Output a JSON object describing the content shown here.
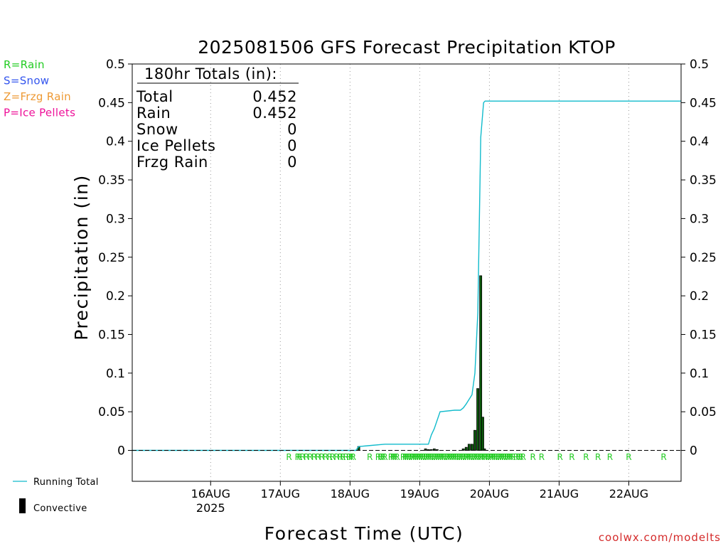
{
  "colors": {
    "rain": "#22cc22",
    "snow": "#3355ee",
    "frzg_rain": "#ee9933",
    "ice_pellets": "#ee1199",
    "running_total": "#11bbcc",
    "convective": "#000000",
    "bar_fill": "#0b5a0b",
    "credit": "#d42a2a"
  },
  "ptype_key": [
    {
      "text": "R=Rain",
      "color": "#22cc22"
    },
    {
      "text": "S=Snow",
      "color": "#3355ee"
    },
    {
      "text": "Z=Frzg Rain",
      "color": "#ee9933"
    },
    {
      "text": "P=Ice Pellets",
      "color": "#ee1199"
    }
  ],
  "totals_box": {
    "heading": "180hr Totals (in):",
    "rows": [
      {
        "label": "Total",
        "value": "0.452"
      },
      {
        "label": "Rain",
        "value": "0.452"
      },
      {
        "label": "Snow",
        "value": "0"
      },
      {
        "label": "Ice Pellets",
        "value": "0"
      },
      {
        "label": "Frzg Rain",
        "value": "0"
      }
    ]
  },
  "legend": {
    "running_total": "Running Total",
    "convective": "Convective"
  },
  "credit": "coolwx.com/modelts",
  "chart_data": {
    "type": "bar",
    "title": "2025081506 GFS Forecast Precipitation KTOP",
    "xlabel": "Forecast Time (UTC)",
    "ylabel": "Precipitation (in)",
    "x_unit": "forecast hour",
    "xlim": [
      -9,
      180
    ],
    "ylim": [
      -0.04,
      0.5
    ],
    "y_ticks": [
      0,
      0.05,
      0.1,
      0.15,
      0.2,
      0.25,
      0.3,
      0.35,
      0.4,
      0.45,
      0.5
    ],
    "y_tick_labels": [
      "0",
      "0.05",
      "0.1",
      "0.15",
      "0.2",
      "0.25",
      "0.3",
      "0.35",
      "0.4",
      "0.45",
      "0.5"
    ],
    "x_ticks": [
      {
        "hour": 18,
        "label": "16AUG",
        "sublabel": "2025"
      },
      {
        "hour": 42,
        "label": "17AUG",
        "sublabel": ""
      },
      {
        "hour": 66,
        "label": "18AUG",
        "sublabel": ""
      },
      {
        "hour": 90,
        "label": "19AUG",
        "sublabel": ""
      },
      {
        "hour": 114,
        "label": "20AUG",
        "sublabel": ""
      },
      {
        "hour": 138,
        "label": "21AUG",
        "sublabel": ""
      },
      {
        "hour": 162,
        "label": "22AUG",
        "sublabel": ""
      }
    ],
    "grid": "vertical dotted at day boundaries",
    "series": [
      {
        "name": "Convective",
        "kind": "bars",
        "x": [
          69,
          92,
          93,
          94,
          95,
          96,
          105,
          106,
          107,
          108,
          109,
          110,
          111,
          111.7,
          112.3
        ],
        "values": [
          0.005,
          0.002,
          0.001,
          0.001,
          0.002,
          0.001,
          0.002,
          0.004,
          0.008,
          0.008,
          0.026,
          0.08,
          0.226,
          0.043,
          0.002
        ]
      },
      {
        "name": "Running Total",
        "kind": "line",
        "x": [
          -9,
          68,
          69,
          72,
          78,
          90,
          93,
          94,
          95,
          97,
          102,
          103,
          104,
          105,
          106,
          107,
          108,
          109,
          110,
          111,
          112,
          112.5,
          180
        ],
        "values": [
          0,
          0,
          0.005,
          0.006,
          0.008,
          0.008,
          0.008,
          0.02,
          0.028,
          0.05,
          0.052,
          0.052,
          0.052,
          0.055,
          0.06,
          0.066,
          0.072,
          0.1,
          0.178,
          0.405,
          0.45,
          0.452,
          0.452
        ]
      }
    ],
    "ptype_markers": {
      "symbol": "R",
      "hours": [
        45,
        48,
        48.6,
        49.7,
        51,
        52.3,
        53.7,
        55,
        56.3,
        57.6,
        59,
        60,
        61.4,
        62.7,
        63.5,
        64.6,
        65.7,
        66.4,
        67.1,
        72.8,
        75.7,
        76.5,
        77.3,
        78,
        80.1,
        80.8,
        81.5,
        82.2,
        84.3,
        85,
        85.7,
        86.4,
        87.2,
        87.8,
        88.5,
        89.2,
        89.9,
        90.6,
        91.3,
        92.1,
        92.8,
        93.5,
        94.2,
        95,
        95.7,
        96.4,
        97.1,
        97.8,
        98.5,
        99.3,
        100,
        100.7,
        101.4,
        102.1,
        102.8,
        103.6,
        104.3,
        105,
        105.8,
        106.4,
        107.1,
        107.8,
        108.6,
        109.3,
        110,
        110.8,
        111.4,
        112.2,
        112.8,
        113.6,
        114.3,
        114.9,
        115.6,
        116.3,
        117.1,
        117.8,
        118.5,
        119.2,
        120,
        120.7,
        121.4,
        122.1,
        123.2,
        124,
        124.8,
        125.6,
        129,
        132,
        138.3,
        142.4,
        147.3,
        151.4,
        155.5,
        162,
        174
      ]
    }
  }
}
